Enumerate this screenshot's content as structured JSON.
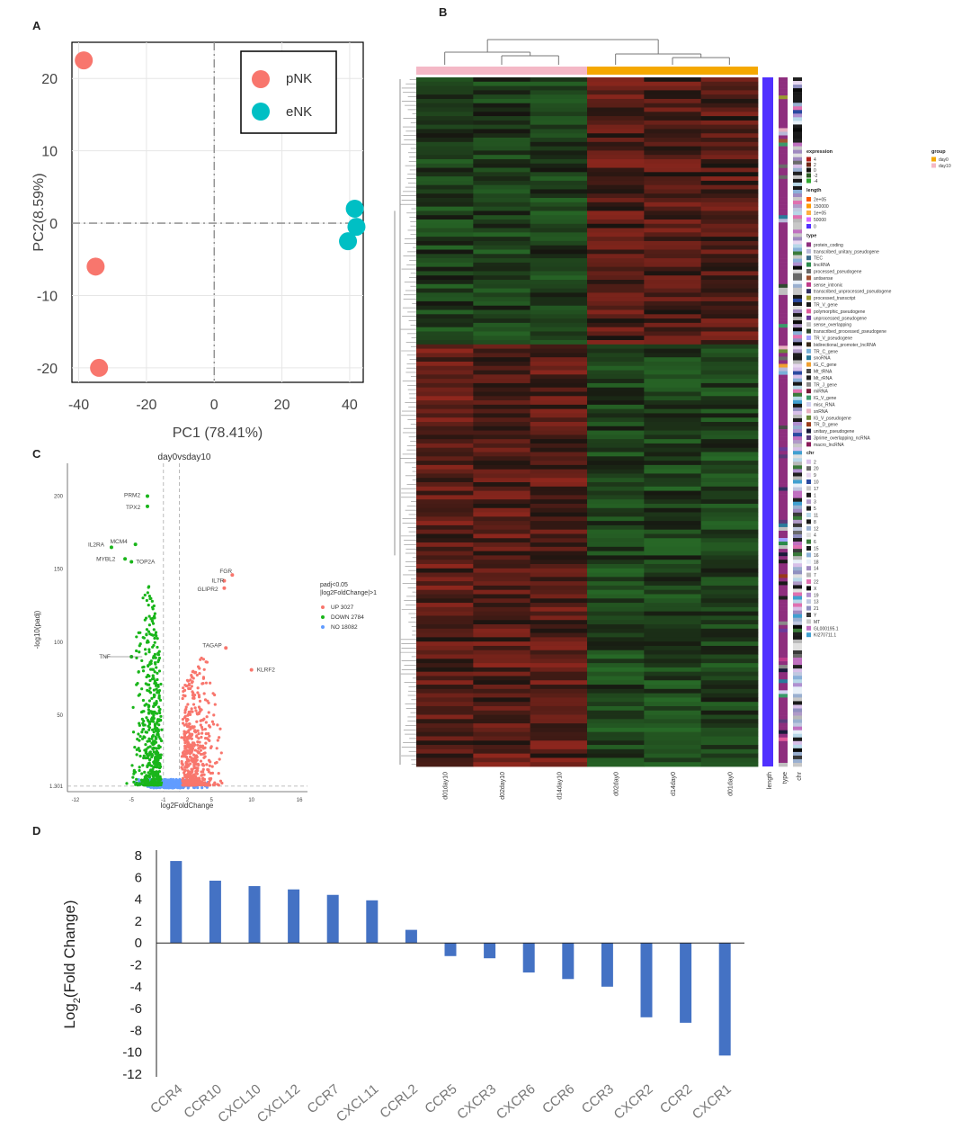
{
  "panel_labels": [
    "A",
    "B",
    "C",
    "D"
  ],
  "chart_data": [
    {
      "panel": "A",
      "type": "scatter",
      "xlabel": "PC1 (78.41%)",
      "ylabel": "PC2(8.59%)",
      "xlim": [
        -42,
        44
      ],
      "ylim": [
        -22,
        25
      ],
      "xticks": [
        -40,
        -20,
        0,
        20,
        40
      ],
      "yticks": [
        20,
        10,
        0,
        -10,
        -20
      ],
      "grid": true,
      "legend_position": "top-right",
      "series": [
        {
          "name": "pNK",
          "color": "#f8766d",
          "points": [
            [
              -38.5,
              22.5
            ],
            [
              -35,
              -6
            ],
            [
              -34,
              -20
            ]
          ]
        },
        {
          "name": "eNK",
          "color": "#00bfc4",
          "points": [
            [
              41.5,
              2
            ],
            [
              42,
              -0.5
            ],
            [
              39.5,
              -2.5
            ]
          ]
        }
      ]
    },
    {
      "panel": "B",
      "type": "heatmap",
      "columns": [
        "d01day10",
        "d02day10",
        "d14day10",
        "d02day0",
        "d14day0",
        "d01day0"
      ],
      "annotation_columns": [
        "length",
        "type",
        "chr"
      ],
      "group_colors": [
        "#f4b8c6",
        "#f5a800"
      ],
      "legend": {
        "expression_title": "expression",
        "expression_values": [
          "4",
          "2",
          "0",
          "-2",
          "-4"
        ],
        "expression_colors": [
          "#b0201a",
          "#6e2818",
          "#161410",
          "#2c5a22",
          "#2fa82f"
        ],
        "group_title": "group",
        "group_values": [
          "day0",
          "day10"
        ],
        "length_title": "length",
        "length_values": [
          "2e+05",
          "150000",
          "1e+05",
          "50000",
          "0"
        ],
        "length_colors": [
          "#ff5a00",
          "#ff9a00",
          "#ffb040",
          "#d868ff",
          "#5030ff"
        ],
        "type_title": "type",
        "type_values": [
          "protein_coding",
          "transcribed_unitary_pseudogene",
          "TEC",
          "lincRNA",
          "processed_pseudogene",
          "antisense",
          "sense_intronic",
          "transcribed_unprocessed_pseudogene",
          "processed_transcript",
          "TR_V_gene",
          "polymorphic_pseudogene",
          "unprocessed_pseudogene",
          "sense_overlapping",
          "transcribed_processed_pseudogene",
          "TR_V_pseudogene",
          "bidirectional_promoter_lncRNA",
          "TR_C_gene",
          "snoRNA",
          "IG_C_gene",
          "Mt_tRNA",
          "Mt_rRNA",
          "TR_J_gene",
          "miRNA",
          "IG_V_gene",
          "misc_RNA",
          "snRNA",
          "IG_V_pseudogene",
          "TR_D_gene",
          "unitary_pseudogene",
          "3prime_overlapping_ncRNA",
          "macro_lncRNA"
        ],
        "type_colors": [
          "#8e2e7e",
          "#b8b8d8",
          "#3a6a8a",
          "#2a8a4a",
          "#6a6a6a",
          "#a05030",
          "#c03a8a",
          "#303060",
          "#9a9a30",
          "#1a1a1a",
          "#e05a9a",
          "#6a3a9a",
          "#c0c0c0",
          "#304a30",
          "#a0a0ff",
          "#3a2a1a",
          "#7ab0d8",
          "#2a7a9a",
          "#f0a030",
          "#4a4a4a",
          "#202020",
          "#8a8a8a",
          "#7a1a3a",
          "#3a9a6a",
          "#d0d0f0",
          "#e8b0c0",
          "#6a8a3a",
          "#9a3a1a",
          "#1a1a3a",
          "#5a3a7a",
          "#8a1a5a"
        ],
        "chr_title": "chr",
        "chr_values": [
          "2",
          "20",
          "9",
          "10",
          "17",
          "1",
          "3",
          "5",
          "11",
          "8",
          "12",
          "4",
          "6",
          "15",
          "16",
          "18",
          "14",
          "7",
          "22",
          "X",
          "19",
          "13",
          "21",
          "Y",
          "MT",
          "GL000195.1",
          "KI270711.1"
        ],
        "chr_colors": [
          "#d8c0e8",
          "#6a6a6a",
          "#e8d8f0",
          "#2a4aa0",
          "#c8c8c8",
          "#181818",
          "#b09ac8",
          "#202020",
          "#b8d8e8",
          "#1a1a1a",
          "#9ab0d0",
          "#e0e0e0",
          "#3a7a3a",
          "#1a1a1a",
          "#8ab0d8",
          "#e8f0f8",
          "#a08ac0",
          "#b8b8b8",
          "#e070b0",
          "#0a0a0a",
          "#b090d0",
          "#c0c8e0",
          "#9090c0",
          "#3a3a3a",
          "#c8c8c8",
          "#c070c0",
          "#40a0d0"
        ]
      }
    },
    {
      "panel": "C",
      "type": "scatter",
      "title": "day0vsday10",
      "xlabel": "log2FoldChange",
      "ylabel": "-log10(padj)",
      "xticks": [
        "-12",
        "-5",
        "-1",
        "2",
        "5",
        "10",
        "16"
      ],
      "yticks": [
        "200",
        "150",
        "100",
        "50",
        "1.301"
      ],
      "legend_title": "padj<0.05\n|log2FoldChange|>1",
      "legend_entries": [
        {
          "label": "UP 3027",
          "color": "#f8766d"
        },
        {
          "label": "DOWN 2784",
          "color": "#19b51a"
        },
        {
          "label": "NO 18082",
          "color": "#619cff"
        }
      ],
      "labeled_genes": [
        {
          "label": "PRM2",
          "x": -3.0,
          "y": 200,
          "group": "DOWN"
        },
        {
          "label": "TPX2",
          "x": -3.0,
          "y": 193,
          "group": "DOWN"
        },
        {
          "label": "IL2RA",
          "x": -7.5,
          "y": 165,
          "group": "DOWN"
        },
        {
          "label": "MCM4",
          "x": -4.5,
          "y": 167,
          "group": "DOWN"
        },
        {
          "label": "MYBL2",
          "x": -5.8,
          "y": 157,
          "group": "DOWN"
        },
        {
          "label": "TOP2A",
          "x": -5.0,
          "y": 155,
          "group": "DOWN"
        },
        {
          "label": "FGR",
          "x": 7.6,
          "y": 146,
          "group": "UP"
        },
        {
          "label": "IL7R",
          "x": 6.6,
          "y": 142,
          "group": "UP"
        },
        {
          "label": "GLIPR2",
          "x": 6.6,
          "y": 137,
          "group": "UP"
        },
        {
          "label": "TAGAP",
          "x": 6.8,
          "y": 96,
          "group": "UP"
        },
        {
          "label": "KLRF2",
          "x": 10.0,
          "y": 81,
          "group": "UP"
        },
        {
          "label": "TNF",
          "x": -5.0,
          "y": 90,
          "group": "DOWN"
        }
      ]
    },
    {
      "panel": "D",
      "type": "bar",
      "ylabel": "Log2(Fold Change)",
      "ylabel_main": "Log",
      "ylabel_sub": "2",
      "ylabel_rest": "(Fold Change)",
      "ylim": [
        -12,
        8
      ],
      "yticks": [
        8,
        6,
        4,
        2,
        0,
        -2,
        -4,
        -6,
        -8,
        -10,
        -12
      ],
      "bar_color": "#4472c4",
      "grid": false,
      "categories": [
        "CCR4",
        "CCR10",
        "CXCL10",
        "CXCL12",
        "CCR7",
        "CXCL11",
        "CCRL2",
        "CCR5",
        "CXCR3",
        "CXCR6",
        "CCR6",
        "CCR3",
        "CXCR2",
        "CCR2",
        "CXCR1"
      ],
      "values": [
        7.5,
        5.7,
        5.2,
        4.9,
        4.4,
        3.9,
        1.2,
        -1.2,
        -1.4,
        -2.7,
        -3.3,
        -4.0,
        -6.8,
        -7.3,
        -10.3
      ]
    }
  ]
}
